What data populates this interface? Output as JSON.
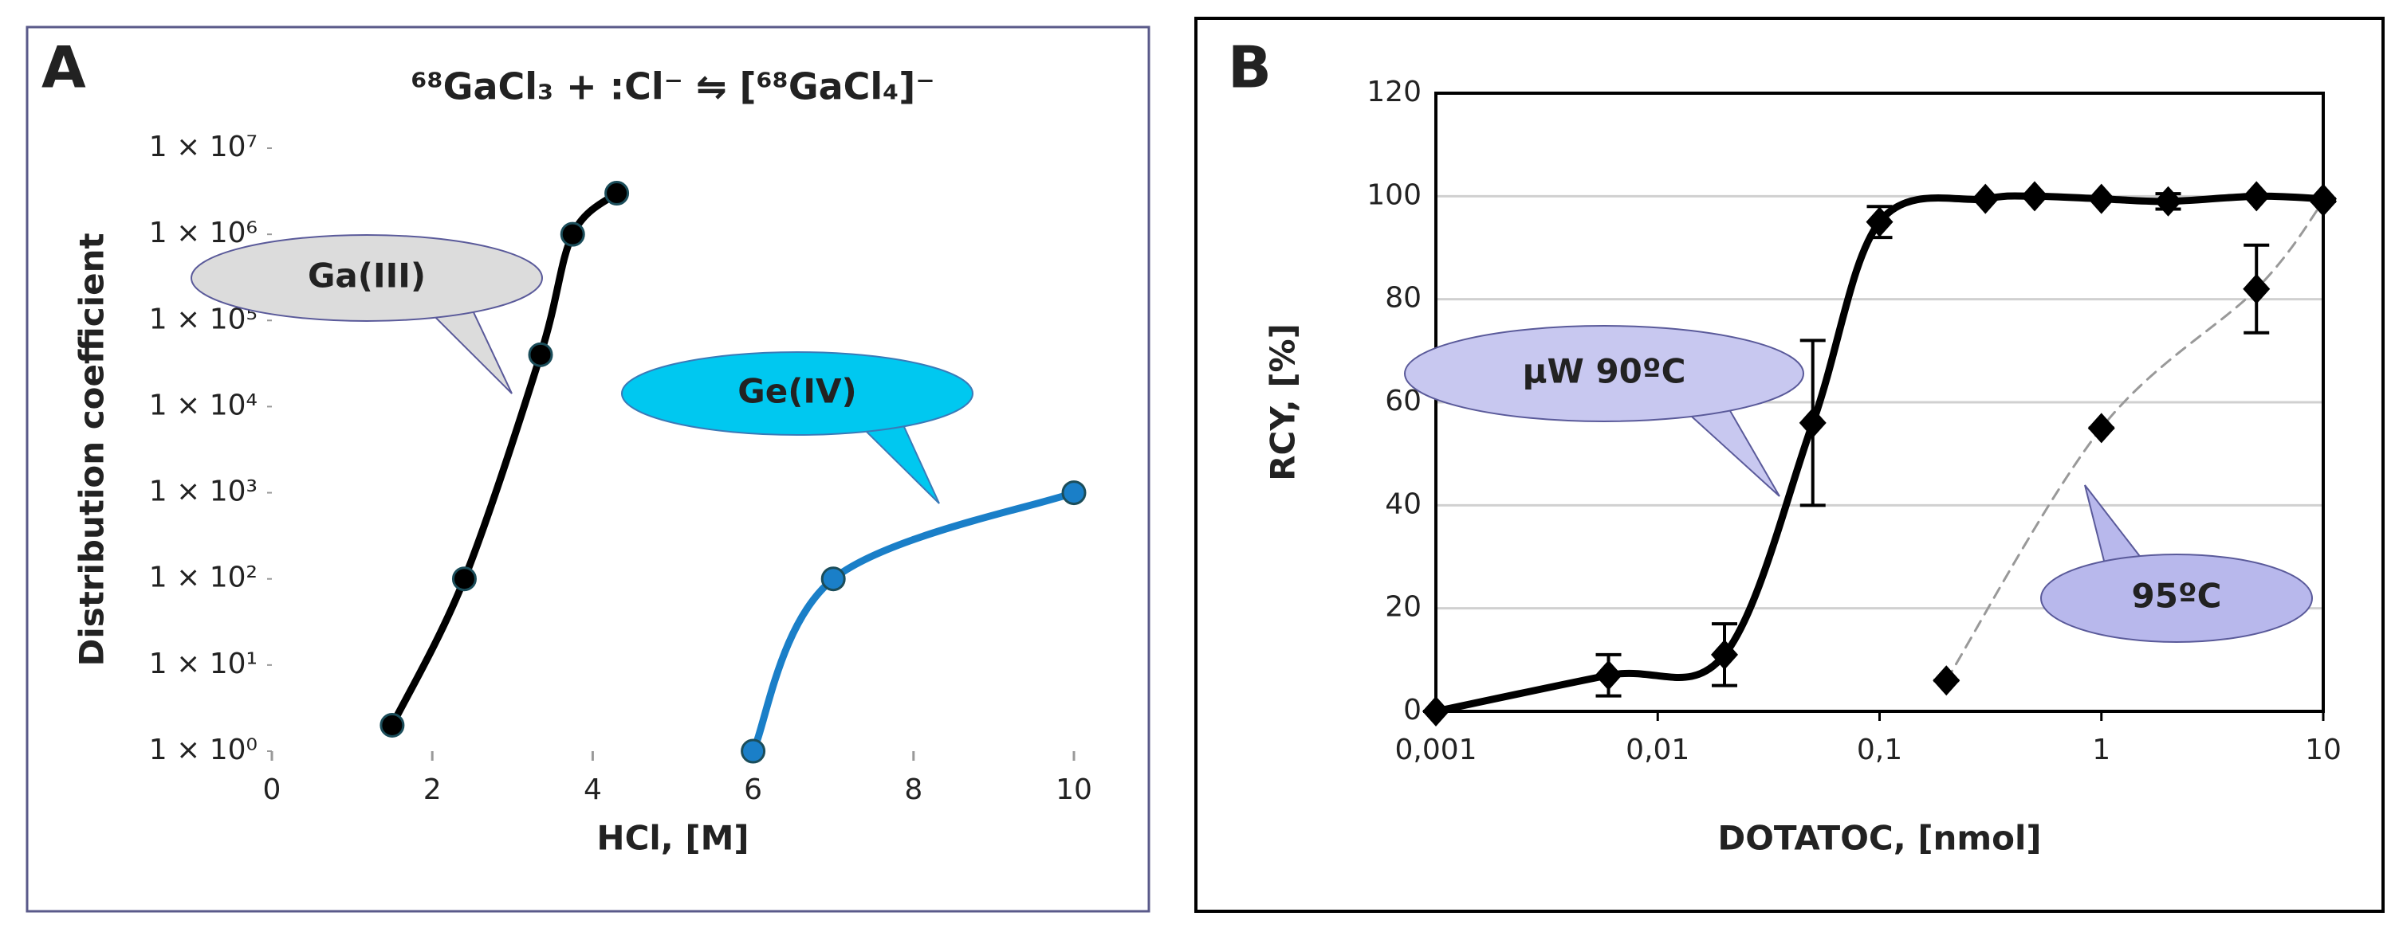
{
  "chart_data": [
    {
      "type": "line",
      "panel": "A",
      "title": "⁶⁸GaCl₃ + :Cl⁻ ⇋ [⁶⁸GaCl₄]⁻",
      "x_label": "HCl, [M]",
      "y_label": "Distribution coefficient",
      "yscale": "log",
      "grid": false,
      "marker": "circle",
      "xlim": [
        0,
        10
      ],
      "xticks": [
        0,
        2,
        4,
        6,
        8,
        10
      ],
      "ylim": [
        1,
        10000000
      ],
      "yticks": [
        {
          "value": 1,
          "label": "1 × 10⁰"
        },
        {
          "value": 10,
          "label": "1 × 10¹"
        },
        {
          "value": 100,
          "label": "1 × 10²"
        },
        {
          "value": 1000,
          "label": "1 × 10³"
        },
        {
          "value": 10000,
          "label": "1 × 10⁴"
        },
        {
          "value": 100000,
          "label": "1 × 10⁵"
        },
        {
          "value": 1000000,
          "label": "1 × 10⁶"
        },
        {
          "value": 10000000,
          "label": "1 × 10⁷"
        }
      ],
      "series": [
        {
          "name": "Ga(III)",
          "color": "#000000",
          "line_style": "solid",
          "x": [
            1.5,
            2.4,
            3.35,
            3.75,
            4.3
          ],
          "values": [
            2,
            100,
            40000,
            1000000,
            3000000
          ]
        },
        {
          "name": "Ge(IV)",
          "color": "#1a7fc8",
          "line_style": "solid",
          "x": [
            6,
            7,
            10
          ],
          "values": [
            1,
            100,
            1000
          ]
        }
      ]
    },
    {
      "type": "line",
      "panel": "B",
      "x_label": "DOTATOC, [nmol]",
      "y_label": "RCY, [%]",
      "xscale": "log",
      "grid": true,
      "marker": "diamond",
      "xlim": [
        0.001,
        10
      ],
      "xticks": [
        {
          "value": 0.001,
          "label": "0,001"
        },
        {
          "value": 0.01,
          "label": "0,01"
        },
        {
          "value": 0.1,
          "label": "0,1"
        },
        1,
        10
      ],
      "ylim": [
        0,
        120
      ],
      "yticks": [
        0,
        20,
        40,
        60,
        80,
        100,
        120
      ],
      "series": [
        {
          "name": "μW 90ºC",
          "color": "#000000",
          "line_style": "solid",
          "x": [
            0.001,
            0.006,
            0.02,
            0.05,
            0.1,
            0.3,
            0.5,
            1,
            2,
            5,
            10
          ],
          "values": [
            0,
            7,
            11,
            56,
            95,
            99.5,
            100,
            99.5,
            99,
            100,
            99.5
          ],
          "errors": [
            0,
            4,
            6,
            16,
            3,
            0,
            0,
            0,
            1.5,
            0,
            0
          ]
        },
        {
          "name": "95ºC",
          "color": "#999999",
          "line_style": "dashed",
          "x": [
            0.2,
            1,
            5,
            10
          ],
          "values": [
            6,
            55,
            82,
            99
          ],
          "errors": [
            0,
            0,
            8.5,
            0
          ]
        }
      ]
    }
  ]
}
